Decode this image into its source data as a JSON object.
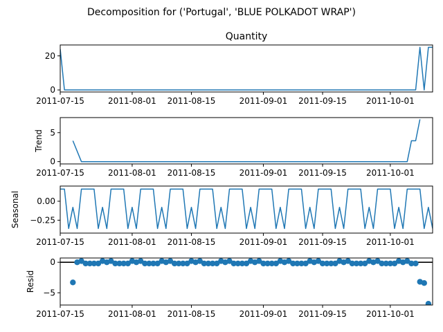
{
  "figure_title": "Decomposition for ('Portugal', 'BLUE POLKADOT WRAP')",
  "colors": {
    "line": "#1f77b4",
    "axis": "#000000",
    "background": "#ffffff"
  },
  "chart_data": [
    {
      "type": "line",
      "title": "Quantity",
      "ylabel": "",
      "xlim": [
        "2011-07-15",
        "2011-10-11"
      ],
      "ylim": [
        -1.2,
        26.4
      ],
      "yticks": [
        0,
        20
      ],
      "xticks": [
        "2011-07-15",
        "2011-08-01",
        "2011-08-15",
        "2011-09-01",
        "2011-09-15",
        "2011-10-01"
      ],
      "series": [
        {
          "x": [
            "2011-07-15",
            "2011-07-16",
            "2011-10-07",
            "2011-10-08",
            "2011-10-09",
            "2011-10-10",
            "2011-10-11"
          ],
          "values": [
            24,
            0,
            0,
            25,
            0,
            25,
            25
          ]
        }
      ]
    },
    {
      "type": "line",
      "title": "",
      "ylabel": "Trend",
      "xlim": [
        "2011-07-15",
        "2011-10-11"
      ],
      "ylim": [
        -0.4,
        7.6
      ],
      "yticks": [
        0,
        5
      ],
      "xticks": [
        "2011-07-15",
        "2011-08-01",
        "2011-08-15",
        "2011-09-01",
        "2011-09-15",
        "2011-10-01"
      ],
      "series": [
        {
          "x": [
            "2011-07-18",
            "2011-07-20",
            "2011-10-05",
            "2011-10-06",
            "2011-10-07",
            "2011-10-08"
          ],
          "values": [
            3.6,
            0,
            0,
            3.6,
            3.6,
            7.3
          ]
        }
      ]
    },
    {
      "type": "line",
      "title": "",
      "ylabel": "Seasonal",
      "xlim": [
        "2011-07-15",
        "2011-10-11"
      ],
      "ylim": [
        -0.42,
        0.2
      ],
      "yticks": [
        0.0,
        -0.25
      ],
      "ytick_labels": [
        "0.00",
        "−0.25"
      ],
      "xticks": [
        "2011-07-15",
        "2011-08-01",
        "2011-08-15",
        "2011-09-01",
        "2011-09-15",
        "2011-10-01"
      ],
      "start_date": "2011-07-15",
      "pattern": [
        0.16,
        0.16,
        -0.36,
        -0.08,
        -0.36,
        0.16,
        0.16
      ],
      "days": 89
    },
    {
      "type": "scatter",
      "title": "",
      "ylabel": "Resid",
      "xlim": [
        "2011-07-15",
        "2011-10-11"
      ],
      "ylim": [
        -7.0,
        0.7
      ],
      "yticks": [
        0,
        -5
      ],
      "ytick_labels": [
        "0",
        "−5"
      ],
      "xticks": [
        "2011-07-15",
        "2011-08-01",
        "2011-08-15",
        "2011-09-01",
        "2011-09-15",
        "2011-10-01"
      ],
      "hline": 0,
      "points": [
        [
          "2011-07-18",
          -3.3
        ],
        [
          "2011-07-19",
          0.0
        ],
        [
          "2011-07-20",
          0.2
        ],
        [
          "2011-07-21",
          -0.2
        ],
        [
          "2011-07-22",
          -0.2
        ],
        [
          "2011-07-23",
          -0.2
        ],
        [
          "2011-07-24",
          -0.2
        ],
        [
          "2011-07-25",
          0.2
        ],
        [
          "2011-07-26",
          0.0
        ],
        [
          "2011-07-27",
          0.2
        ],
        [
          "2011-07-28",
          -0.2
        ],
        [
          "2011-07-29",
          -0.2
        ],
        [
          "2011-07-30",
          -0.2
        ],
        [
          "2011-07-31",
          -0.2
        ],
        [
          "2011-08-01",
          0.2
        ],
        [
          "2011-08-02",
          0.0
        ],
        [
          "2011-08-03",
          0.2
        ],
        [
          "2011-08-04",
          -0.2
        ],
        [
          "2011-08-05",
          -0.2
        ],
        [
          "2011-08-06",
          -0.2
        ],
        [
          "2011-08-07",
          -0.2
        ],
        [
          "2011-08-08",
          0.2
        ],
        [
          "2011-08-09",
          0.0
        ],
        [
          "2011-08-10",
          0.2
        ],
        [
          "2011-08-11",
          -0.2
        ],
        [
          "2011-08-12",
          -0.2
        ],
        [
          "2011-08-13",
          -0.2
        ],
        [
          "2011-08-14",
          -0.2
        ],
        [
          "2011-08-15",
          0.2
        ],
        [
          "2011-08-16",
          0.0
        ],
        [
          "2011-08-17",
          0.2
        ],
        [
          "2011-08-18",
          -0.2
        ],
        [
          "2011-08-19",
          -0.2
        ],
        [
          "2011-08-20",
          -0.2
        ],
        [
          "2011-08-21",
          -0.2
        ],
        [
          "2011-08-22",
          0.2
        ],
        [
          "2011-08-23",
          0.0
        ],
        [
          "2011-08-24",
          0.2
        ],
        [
          "2011-08-25",
          -0.2
        ],
        [
          "2011-08-26",
          -0.2
        ],
        [
          "2011-08-27",
          -0.2
        ],
        [
          "2011-08-28",
          -0.2
        ],
        [
          "2011-08-29",
          0.2
        ],
        [
          "2011-08-30",
          0.0
        ],
        [
          "2011-08-31",
          0.2
        ],
        [
          "2011-09-01",
          -0.2
        ],
        [
          "2011-09-02",
          -0.2
        ],
        [
          "2011-09-03",
          -0.2
        ],
        [
          "2011-09-04",
          -0.2
        ],
        [
          "2011-09-05",
          0.2
        ],
        [
          "2011-09-06",
          0.0
        ],
        [
          "2011-09-07",
          0.2
        ],
        [
          "2011-09-08",
          -0.2
        ],
        [
          "2011-09-09",
          -0.2
        ],
        [
          "2011-09-10",
          -0.2
        ],
        [
          "2011-09-11",
          -0.2
        ],
        [
          "2011-09-12",
          0.2
        ],
        [
          "2011-09-13",
          0.0
        ],
        [
          "2011-09-14",
          0.2
        ],
        [
          "2011-09-15",
          -0.2
        ],
        [
          "2011-09-16",
          -0.2
        ],
        [
          "2011-09-17",
          -0.2
        ],
        [
          "2011-09-18",
          -0.2
        ],
        [
          "2011-09-19",
          0.2
        ],
        [
          "2011-09-20",
          0.0
        ],
        [
          "2011-09-21",
          0.2
        ],
        [
          "2011-09-22",
          -0.2
        ],
        [
          "2011-09-23",
          -0.2
        ],
        [
          "2011-09-24",
          -0.2
        ],
        [
          "2011-09-25",
          -0.2
        ],
        [
          "2011-09-26",
          0.2
        ],
        [
          "2011-09-27",
          0.0
        ],
        [
          "2011-09-28",
          0.2
        ],
        [
          "2011-09-29",
          -0.2
        ],
        [
          "2011-09-30",
          -0.2
        ],
        [
          "2011-10-01",
          -0.2
        ],
        [
          "2011-10-02",
          -0.2
        ],
        [
          "2011-10-03",
          0.2
        ],
        [
          "2011-10-04",
          0.0
        ],
        [
          "2011-10-05",
          0.2
        ],
        [
          "2011-10-06",
          -0.2
        ],
        [
          "2011-10-07",
          -0.2
        ],
        [
          "2011-10-08",
          -3.2
        ],
        [
          "2011-10-09",
          -3.4
        ],
        [
          "2011-10-10",
          -6.8
        ]
      ]
    }
  ]
}
